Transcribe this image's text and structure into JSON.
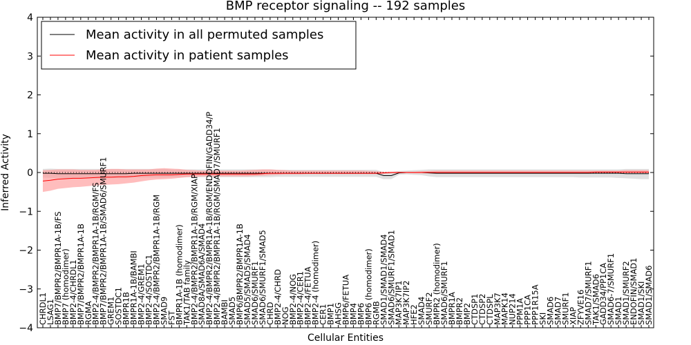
{
  "chart_data": {
    "type": "line",
    "title": "BMP receptor signaling -- 192 samples",
    "xlabel": "Cellular Entities",
    "ylabel": "Inferred Activity",
    "ylim": [
      -4,
      4
    ],
    "yticks": [
      "4",
      "3",
      "2",
      "1",
      "0",
      "−1",
      "−2",
      "−3",
      "−4"
    ],
    "grid": false,
    "legend_position": "top-left",
    "categories": [
      "CHRDL1",
      "LSAG1",
      "BMP7/BMPR2/BMPR1A-1B/FS",
      "BMP7 (homodimer)",
      "BMP2-4/CHRDL1",
      "BMP7/BMPR2/BMPR1A-1B",
      "RGMA",
      "BMP2-4/BMPR2/BMPR1A-1B/RGM/FS",
      "BMP7/BMPR2/BMPR1A-1B/SMAD6/SMURF1",
      "GREM1",
      "SOSTDC1",
      "BMPR1B",
      "BMPR1A-1B/BAMBI",
      "BMP2-4/GREM1",
      "BMP2-4/SOSTDC1",
      "BMP2-4/BMPR2/BMPR1A-1B/RGM",
      "SMAD9",
      "FST",
      "BMPR1A-1B (homodimer)",
      "TAK1/TAB family",
      "BMP2-4/BMPR2/BMPR1A-1B/RGM/XIAP",
      "SMAD8A/SMAD6A/SMAD4",
      "BMP2-4/BMPR2/BMPR1A-1B/RGM/ENDOFIN/GADD34/P",
      "BMP2-4/BMPR2/BMPR1A-1B/RGM/SMAD7/SMURF1",
      "BAMBI",
      "SMAD5",
      "BMP6/BMPR2/BMPR1A-1B",
      "SMAD5/SMAD5/SMAD4",
      "SMAD6/SMURF1",
      "SMAD6/SMURF1/SMAD5",
      "CHRD",
      "BMP2-4/CHRD",
      "NOG",
      "BMP2-4/NOG",
      "BMP2-4/CER1",
      "BMP2-4/FETUA",
      "BMP2-4 (homodimer)",
      "CER1",
      "BMP1",
      "AHSG",
      "BMP6/FETUA",
      "BMP4",
      "BMP6",
      "BMP6 (homodimer)",
      "RGMB",
      "SMAD1/SMAD1/SMAD4",
      "SMAD6/SMURF1/SMAD1",
      "MAP3K7IP1",
      "MAP3K7IP2",
      "HFE2",
      "SMAD4",
      "SMURF2",
      "BMPR2 (homodimer)",
      "SMAD6/SMURF1",
      "BMPR1A",
      "BMPR2",
      "BMP2",
      "CTDSP1",
      "CTDSP2",
      "CTDSPL",
      "MAP3K7",
      "MAPK14",
      "NUP214",
      "PPM1A",
      "PPP1CA",
      "PPP1R15A",
      "SKI",
      "SMAD6",
      "SMAD7",
      "SMURF1",
      "XIAP",
      "ZFYVE16",
      "SMAD7/SMURF1",
      "TAK1/SMAD6",
      "GADD34/PP1CA",
      "SMAD6-7/SMURF1",
      "SMAD1",
      "SMAD1/SMURF2",
      "ENDOFIN/SMAD1",
      "SMAD1/SKI",
      "SMAD1/SMAD6"
    ],
    "series": [
      {
        "name": "Mean activity in all permuted samples",
        "color": "#000000",
        "band_color": "#d6d6d6",
        "values": [
          -0.02,
          -0.02,
          -0.03,
          -0.03,
          -0.03,
          -0.03,
          -0.03,
          -0.03,
          -0.03,
          -0.03,
          -0.03,
          -0.03,
          -0.02,
          -0.02,
          -0.02,
          -0.02,
          -0.02,
          -0.02,
          -0.02,
          -0.02,
          -0.02,
          -0.02,
          -0.02,
          -0.02,
          -0.02,
          -0.02,
          -0.02,
          -0.02,
          -0.02,
          -0.02,
          -0.02,
          -0.02,
          -0.02,
          -0.02,
          -0.02,
          -0.02,
          -0.02,
          -0.02,
          -0.02,
          -0.02,
          -0.02,
          -0.02,
          -0.02,
          -0.02,
          -0.02,
          -0.08,
          -0.08,
          -0.01,
          0.0,
          0.0,
          0.0,
          -0.01,
          -0.02,
          -0.02,
          -0.02,
          -0.02,
          -0.02,
          -0.02,
          -0.02,
          -0.02,
          -0.02,
          -0.02,
          -0.02,
          -0.02,
          -0.02,
          -0.02,
          -0.02,
          -0.02,
          -0.02,
          -0.02,
          -0.02,
          -0.02,
          -0.02,
          -0.02,
          -0.02,
          -0.02,
          -0.02,
          -0.03,
          -0.03,
          -0.03,
          -0.03
        ],
        "band_lower": [
          -0.13,
          -0.14,
          -0.14,
          -0.15,
          -0.15,
          -0.15,
          -0.15,
          -0.15,
          -0.15,
          -0.15,
          -0.15,
          -0.15,
          -0.13,
          -0.13,
          -0.13,
          -0.13,
          -0.13,
          -0.12,
          -0.12,
          -0.12,
          -0.12,
          -0.12,
          -0.12,
          -0.12,
          -0.12,
          -0.12,
          -0.12,
          -0.12,
          -0.12,
          -0.12,
          -0.12,
          -0.11,
          -0.11,
          -0.11,
          -0.11,
          -0.11,
          -0.11,
          -0.11,
          -0.11,
          -0.11,
          -0.11,
          -0.11,
          -0.11,
          -0.11,
          -0.11,
          -0.17,
          -0.17,
          -0.06,
          -0.05,
          -0.06,
          -0.07,
          -0.1,
          -0.12,
          -0.12,
          -0.12,
          -0.12,
          -0.12,
          -0.12,
          -0.12,
          -0.12,
          -0.12,
          -0.12,
          -0.12,
          -0.12,
          -0.12,
          -0.12,
          -0.12,
          -0.12,
          -0.12,
          -0.12,
          -0.12,
          -0.13,
          -0.13,
          -0.13,
          -0.13,
          -0.13,
          -0.14,
          -0.15,
          -0.16,
          -0.17,
          -0.17
        ],
        "band_upper": [
          0.09,
          0.1,
          0.09,
          0.09,
          0.09,
          0.09,
          0.09,
          0.09,
          0.09,
          0.09,
          0.09,
          0.09,
          0.09,
          0.09,
          0.09,
          0.09,
          0.09,
          0.08,
          0.08,
          0.08,
          0.08,
          0.08,
          0.08,
          0.08,
          0.08,
          0.08,
          0.08,
          0.08,
          0.08,
          0.08,
          0.08,
          0.07,
          0.07,
          0.07,
          0.07,
          0.07,
          0.07,
          0.07,
          0.07,
          0.07,
          0.07,
          0.07,
          0.07,
          0.07,
          0.07,
          0.01,
          0.01,
          0.04,
          0.05,
          0.06,
          0.07,
          0.08,
          0.08,
          0.08,
          0.08,
          0.08,
          0.08,
          0.08,
          0.08,
          0.08,
          0.08,
          0.08,
          0.08,
          0.08,
          0.08,
          0.08,
          0.08,
          0.08,
          0.08,
          0.08,
          0.08,
          0.08,
          0.08,
          0.08,
          0.08,
          0.08,
          0.08,
          0.09,
          0.09,
          0.09,
          0.09
        ]
      },
      {
        "name": "Mean activity in patient samples",
        "color": "#ff0000",
        "band_color": "#ff9999",
        "values": [
          -0.22,
          -0.2,
          -0.17,
          -0.16,
          -0.15,
          -0.15,
          -0.14,
          -0.13,
          -0.12,
          -0.12,
          -0.11,
          -0.11,
          -0.1,
          -0.08,
          -0.07,
          -0.06,
          -0.06,
          -0.06,
          -0.05,
          -0.04,
          -0.04,
          -0.04,
          -0.04,
          -0.04,
          -0.04,
          -0.04,
          -0.04,
          -0.04,
          -0.04,
          -0.03,
          -0.02,
          -0.02,
          -0.02,
          -0.02,
          -0.02,
          -0.02,
          -0.02,
          -0.02,
          -0.02,
          -0.02,
          -0.02,
          -0.02,
          -0.02,
          -0.02,
          -0.02,
          -0.01,
          0.0,
          0.0,
          0.0,
          0.0,
          0.0,
          0.0,
          0.0,
          0.0,
          0.0,
          0.0,
          0.0,
          0.0,
          0.0,
          0.0,
          0.0,
          0.0,
          0.0,
          0.0,
          0.0,
          0.0,
          0.0,
          0.0,
          0.0,
          0.0,
          0.0,
          0.0,
          0.0,
          0.01,
          0.01,
          0.01,
          0.01,
          0.01,
          0.01,
          0.01,
          0.01
        ],
        "band_lower": [
          -0.5,
          -0.47,
          -0.42,
          -0.4,
          -0.38,
          -0.37,
          -0.35,
          -0.33,
          -0.32,
          -0.31,
          -0.3,
          -0.28,
          -0.26,
          -0.23,
          -0.2,
          -0.18,
          -0.17,
          -0.16,
          -0.14,
          -0.12,
          -0.11,
          -0.1,
          -0.1,
          -0.1,
          -0.1,
          -0.1,
          -0.1,
          -0.1,
          -0.09,
          -0.08,
          -0.07,
          -0.06,
          -0.05,
          -0.05,
          -0.05,
          -0.04,
          -0.04,
          -0.04,
          -0.04,
          -0.04,
          -0.04,
          -0.04,
          -0.04,
          -0.04,
          -0.04,
          -0.03,
          -0.02,
          -0.02,
          -0.01,
          -0.02,
          -0.02,
          -0.02,
          -0.02,
          -0.02,
          -0.02,
          -0.02,
          -0.02,
          -0.02,
          -0.02,
          -0.02,
          -0.02,
          -0.02,
          -0.02,
          -0.02,
          -0.02,
          -0.02,
          -0.02,
          -0.02,
          -0.02,
          -0.02,
          -0.02,
          -0.02,
          -0.02,
          -0.02,
          -0.02,
          -0.02,
          -0.02,
          -0.02,
          -0.02,
          -0.02,
          -0.02
        ],
        "band_upper": [
          0.06,
          0.07,
          0.08,
          0.08,
          0.08,
          0.07,
          0.07,
          0.07,
          0.08,
          0.09,
          0.09,
          0.08,
          0.08,
          0.08,
          0.08,
          0.1,
          0.11,
          0.1,
          0.09,
          0.07,
          0.06,
          0.05,
          0.05,
          0.05,
          0.05,
          0.05,
          0.05,
          0.06,
          0.07,
          0.08,
          0.08,
          0.07,
          0.06,
          0.05,
          0.05,
          0.05,
          0.05,
          0.05,
          0.05,
          0.05,
          0.05,
          0.05,
          0.05,
          0.04,
          0.03,
          0.02,
          0.02,
          0.02,
          0.02,
          0.02,
          0.03,
          0.04,
          0.05,
          0.05,
          0.05,
          0.05,
          0.05,
          0.05,
          0.05,
          0.05,
          0.05,
          0.05,
          0.05,
          0.05,
          0.05,
          0.05,
          0.05,
          0.05,
          0.05,
          0.05,
          0.05,
          0.05,
          0.05,
          0.05,
          0.05,
          0.05,
          0.05,
          0.06,
          0.06,
          0.06,
          0.06
        ]
      }
    ]
  }
}
